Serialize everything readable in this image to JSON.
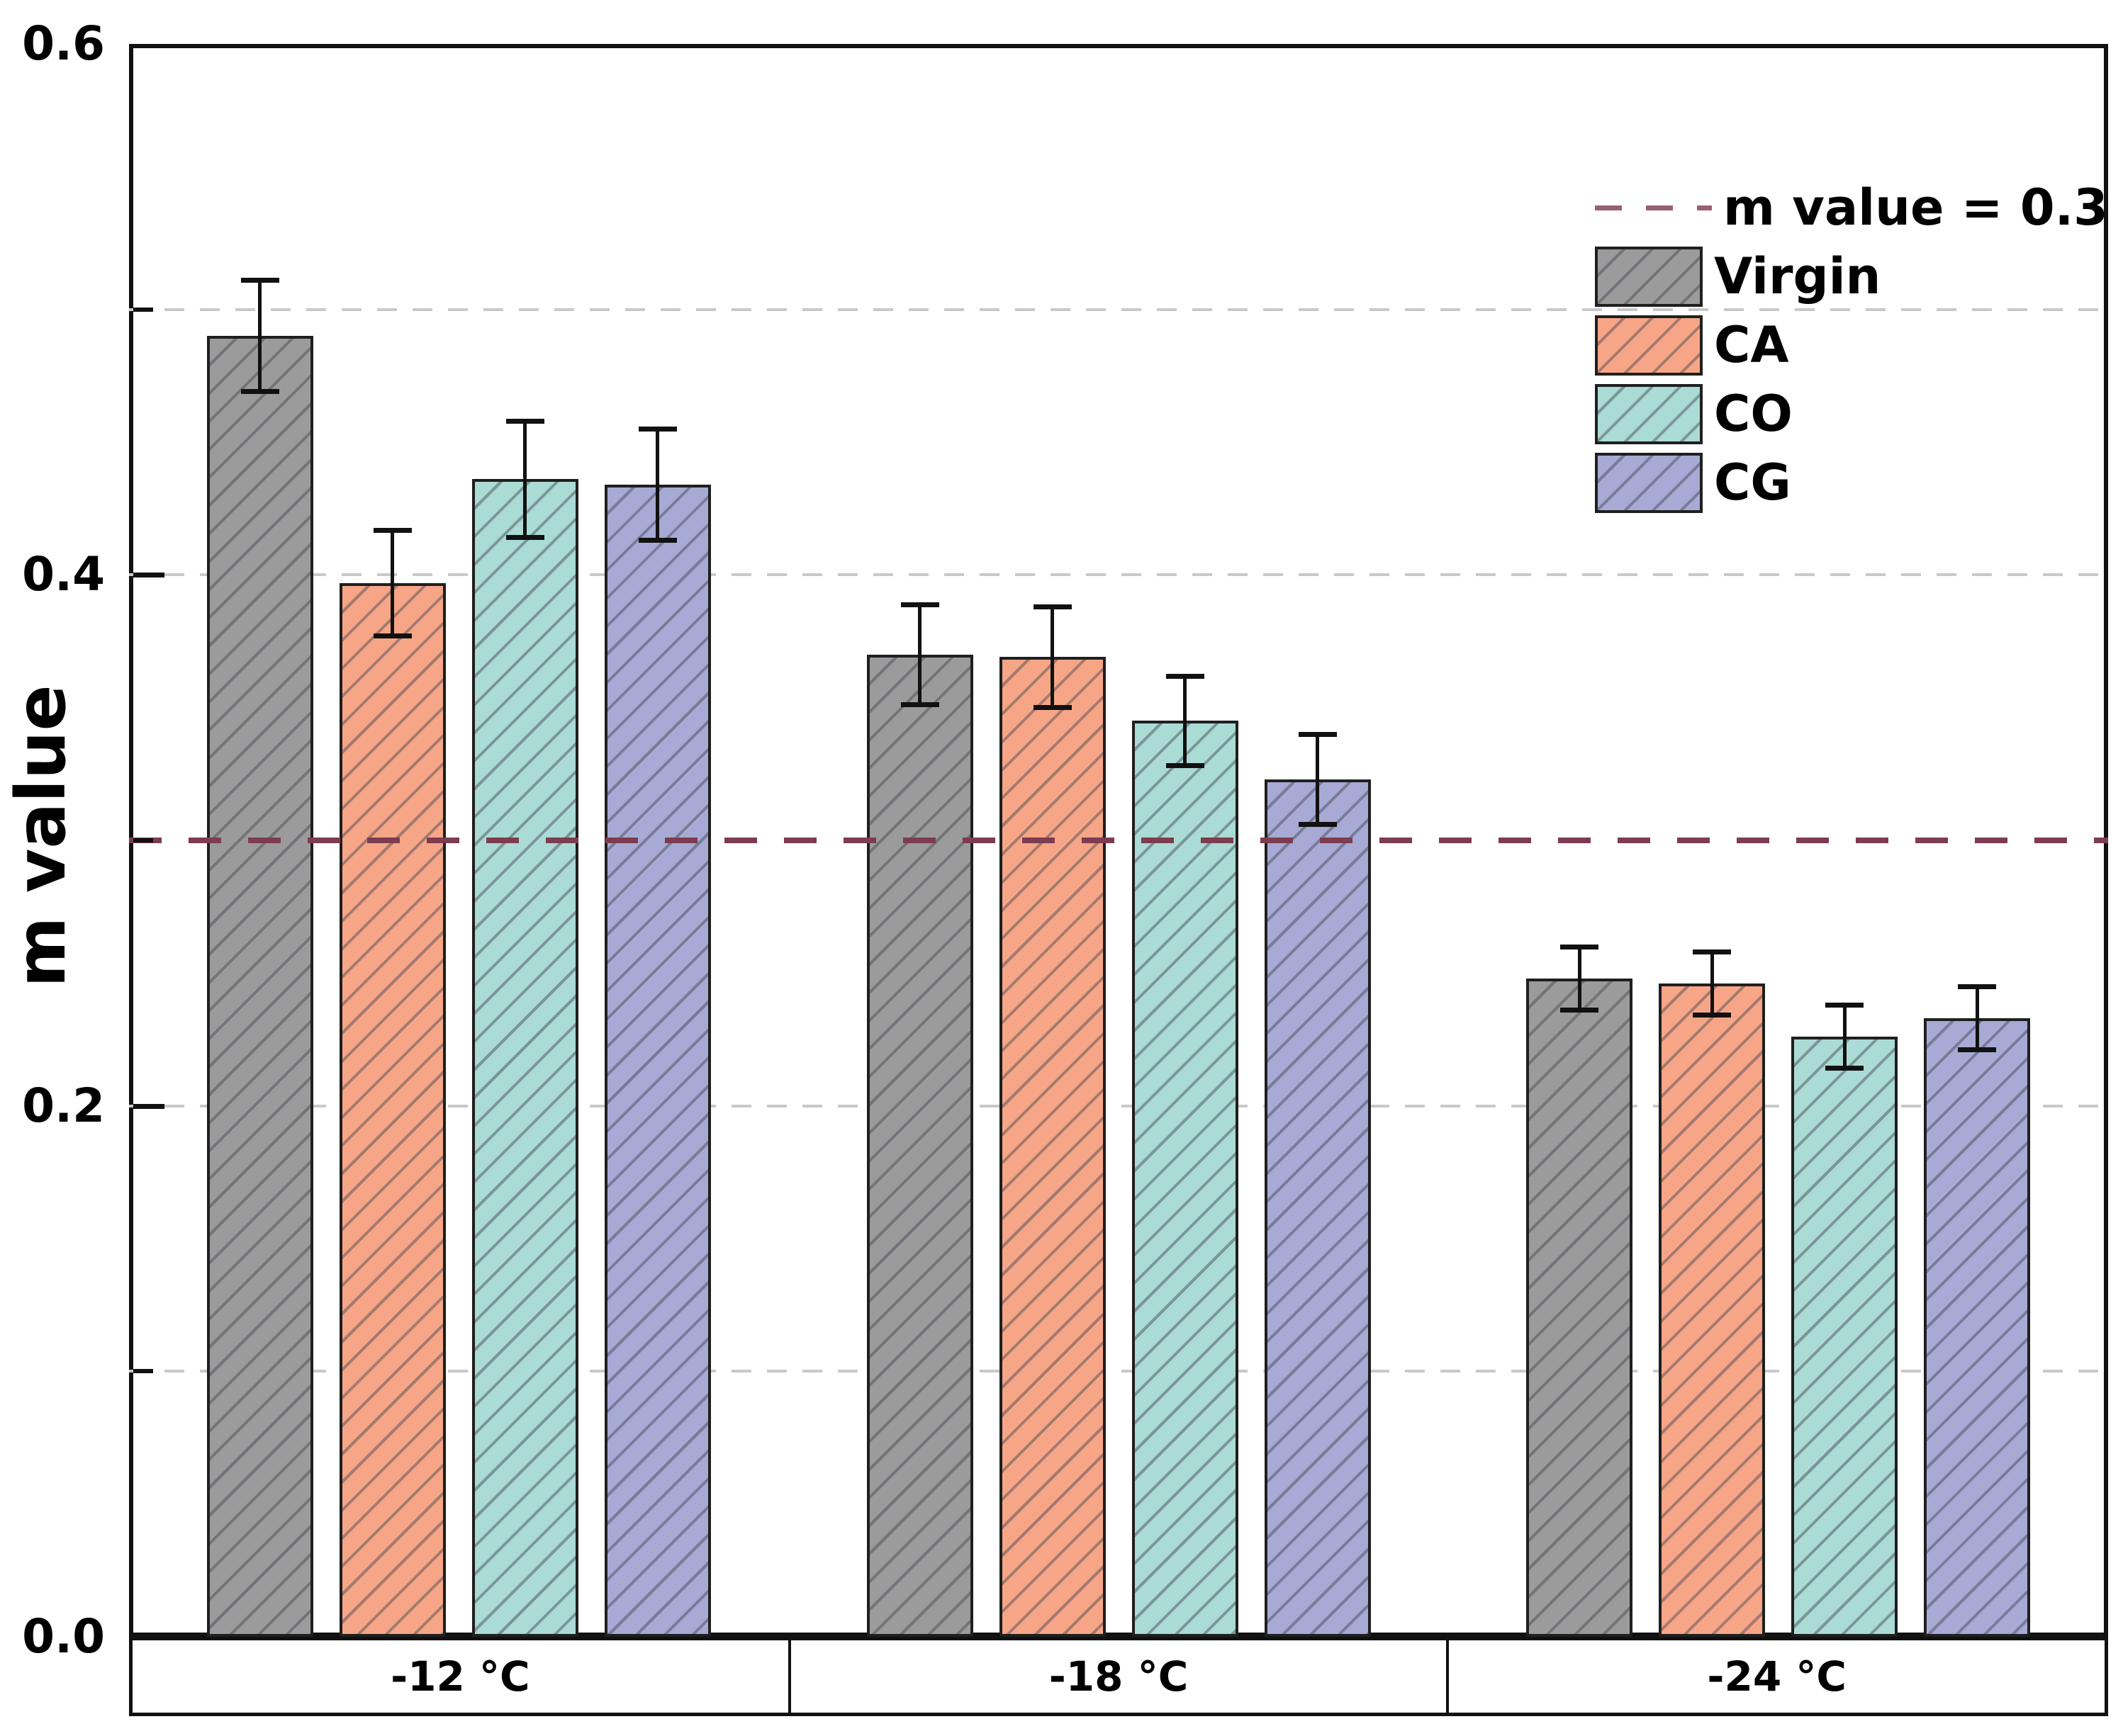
{
  "chart_data": {
    "type": "bar",
    "title": "",
    "xlabel": "",
    "ylabel": "m value",
    "ylim": [
      0.0,
      0.6
    ],
    "y_major_ticks": [
      0.0,
      0.2,
      0.4,
      0.6
    ],
    "y_major_tick_labels": [
      "0.0",
      "0.2",
      "0.4",
      "0.6"
    ],
    "y_minor_ticks": [
      0.1,
      0.3,
      0.5
    ],
    "gridline_values": [
      0.1,
      0.2,
      0.4,
      0.5
    ],
    "grid_style": "dashed horizontal, light gray, behind bars",
    "categories": [
      "-12 °C",
      "-18 °C",
      "-24 °C"
    ],
    "series": [
      {
        "name": "Virgin",
        "color": "#9b9b9b",
        "values": [
          0.49,
          0.37,
          0.248
        ],
        "errors": [
          0.021,
          0.019,
          0.012
        ]
      },
      {
        "name": "CA",
        "color": "#f6a687",
        "values": [
          0.397,
          0.369,
          0.246
        ],
        "errors": [
          0.02,
          0.019,
          0.012
        ]
      },
      {
        "name": "CO",
        "color": "#aadbd4",
        "values": [
          0.436,
          0.345,
          0.226
        ],
        "errors": [
          0.022,
          0.017,
          0.012
        ]
      },
      {
        "name": "CG",
        "color": "#a6aad5",
        "values": [
          0.434,
          0.323,
          0.233
        ],
        "errors": [
          0.021,
          0.017,
          0.012
        ]
      }
    ],
    "reference_line": {
      "value": 0.3,
      "label": "m value = 0.3",
      "color": "#7d3c4f",
      "legend_color": "#99606e",
      "style": "dashed"
    },
    "legend": {
      "position": "top-right",
      "entries": [
        "m value = 0.3",
        "Virgin",
        "CA",
        "CO",
        "CG"
      ]
    },
    "bar_hatch": "diagonal forward-slash gray lines on all bars and legend swatches",
    "error_bars": "symmetric, black, with caps",
    "frame": "full box around plot, black",
    "colors": {
      "axis": "#111111",
      "grid": "#c9c9c9",
      "background": "#ffffff",
      "text": "#000000"
    }
  }
}
